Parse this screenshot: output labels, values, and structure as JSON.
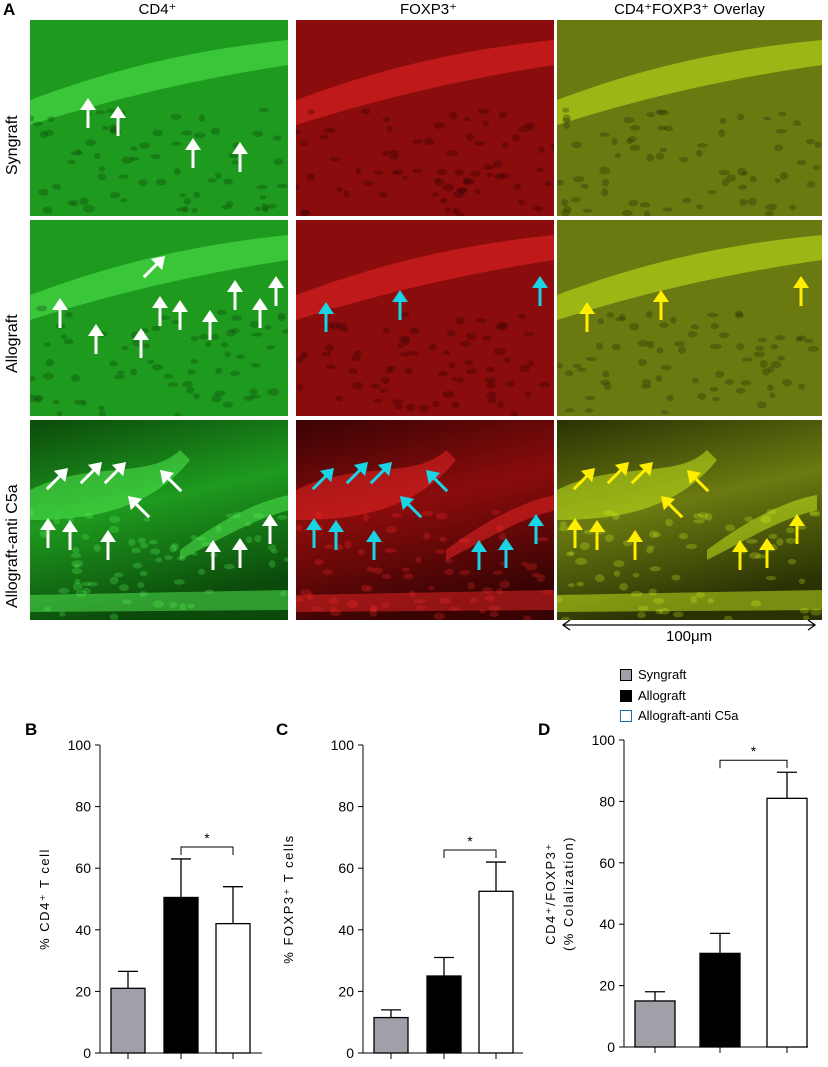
{
  "panel_labels": {
    "a": "A",
    "b": "B",
    "c": "C",
    "d": "D"
  },
  "micrograph": {
    "columns": [
      "CD4⁺",
      "FOXP3⁺",
      "CD4⁺FOXP3⁺ Overlay"
    ],
    "rows": [
      "Syngraft",
      "Allograft",
      "Allograft-anti C5a"
    ],
    "scale_bar_label": "100μm",
    "colors": {
      "green": "#1e9a1e",
      "red": "#8a0c0c",
      "overlay": "#6b7a10",
      "arrow_white": "#ffffff",
      "arrow_cyan": "#19d3e6",
      "arrow_yellow": "#ffee00"
    }
  },
  "legend": {
    "items": [
      {
        "label": "Syngraft",
        "color": "#a0a0a8"
      },
      {
        "label": "Allograft",
        "color": "#000000"
      },
      {
        "label": "Allograft-anti C5a",
        "color": "#ffffff"
      }
    ]
  },
  "chart_data": [
    {
      "panel": "B",
      "type": "bar",
      "categories": [
        "Syngraft",
        "Allograft",
        "Allograft-anti C5a"
      ],
      "values": [
        21,
        50.5,
        42
      ],
      "errors": [
        5.5,
        12.5,
        12
      ],
      "colors": [
        "#a0a0a8",
        "#000000",
        "#ffffff"
      ],
      "ylabel": "% CD4⁺ T cell",
      "ylim": [
        0,
        100
      ],
      "yticks": [
        0,
        20,
        40,
        60,
        80,
        100
      ],
      "significance": {
        "between": [
          1,
          2
        ],
        "label": "*"
      }
    },
    {
      "panel": "C",
      "type": "bar",
      "categories": [
        "Syngraft",
        "Allograft",
        "Allograft-anti C5a"
      ],
      "values": [
        11.5,
        25,
        52.5
      ],
      "errors": [
        2.5,
        6,
        9.5
      ],
      "colors": [
        "#a0a0a8",
        "#000000",
        "#ffffff"
      ],
      "ylabel": "% FOXP3⁺ T cells",
      "ylim": [
        0,
        100
      ],
      "yticks": [
        0,
        20,
        40,
        60,
        80,
        100
      ],
      "significance": {
        "between": [
          1,
          2
        ],
        "label": "*"
      }
    },
    {
      "panel": "D",
      "type": "bar",
      "categories": [
        "Syngraft",
        "Allograft",
        "Allograft-anti C5a"
      ],
      "values": [
        15,
        30.5,
        81
      ],
      "errors": [
        3,
        6.5,
        8.5
      ],
      "colors": [
        "#a0a0a8",
        "#000000",
        "#ffffff"
      ],
      "ylabel": "CD4⁺/FOXP3⁺",
      "ylabel2": "(% Colalization)",
      "ylim": [
        0,
        100
      ],
      "yticks": [
        0,
        20,
        40,
        60,
        80,
        100
      ],
      "significance": {
        "between": [
          1,
          2
        ],
        "label": "*"
      }
    }
  ]
}
